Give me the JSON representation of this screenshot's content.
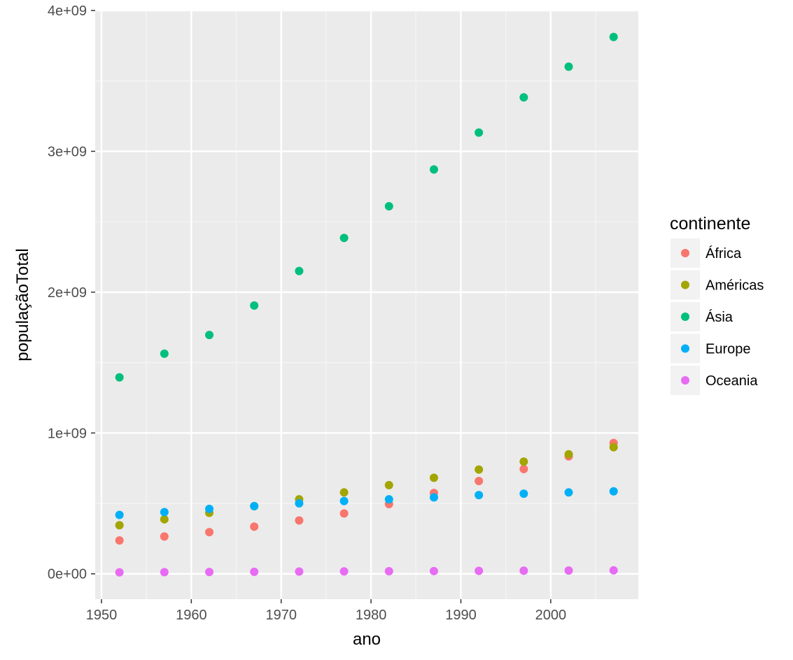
{
  "chart_data": {
    "type": "scatter",
    "xlabel": "ano",
    "ylabel": "populaçãoTotal",
    "xlim": [
      1949.3,
      2009.75
    ],
    "ylim": [
      -180000000,
      4000000000
    ],
    "x_ticks": [
      {
        "value": 1950,
        "label": "1950"
      },
      {
        "value": 1960,
        "label": "1960"
      },
      {
        "value": 1970,
        "label": "1970"
      },
      {
        "value": 1980,
        "label": "1980"
      },
      {
        "value": 1990,
        "label": "1990"
      },
      {
        "value": 2000,
        "label": "2000"
      }
    ],
    "y_ticks": [
      {
        "value": 0,
        "label": "0e+00"
      },
      {
        "value": 1000000000,
        "label": "1e+09"
      },
      {
        "value": 2000000000,
        "label": "2e+09"
      },
      {
        "value": 3000000000,
        "label": "3e+09"
      },
      {
        "value": 4000000000,
        "label": "4e+09"
      }
    ],
    "grid": true,
    "legend": {
      "title": "continente",
      "position": "right"
    },
    "x": [
      1952,
      1957,
      1962,
      1967,
      1972,
      1977,
      1982,
      1987,
      1992,
      1997,
      2002,
      2007
    ],
    "series": [
      {
        "name": "África",
        "color": "#F8766D",
        "values": [
          237000000,
          265000000,
          296000000,
          335000000,
          379000000,
          429000000,
          495000000,
          574000000,
          659000000,
          744000000,
          834000000,
          929000000
        ]
      },
      {
        "name": "Américas",
        "color": "#A3A500",
        "values": [
          345000000,
          387000000,
          433000000,
          480000000,
          529000000,
          578000000,
          630000000,
          682000000,
          740000000,
          797000000,
          849000000,
          899000000
        ]
      },
      {
        "name": "Ásia",
        "color": "#00BF7D",
        "values": [
          1395000000,
          1563000000,
          1696000000,
          1905000000,
          2150000000,
          2385000000,
          2610000000,
          2871000000,
          3133000000,
          3383000000,
          3601000000,
          3812000000
        ]
      },
      {
        "name": "Europe",
        "color": "#00B0F6",
        "values": [
          418000000,
          438000000,
          461000000,
          481000000,
          501000000,
          517000000,
          529000000,
          543000000,
          559000000,
          569000000,
          578000000,
          586000000
        ]
      },
      {
        "name": "Oceania",
        "color": "#E76BF3",
        "values": [
          10700000,
          11900000,
          13000000,
          14500000,
          16100000,
          17200000,
          18400000,
          19500000,
          20900000,
          22200000,
          23500000,
          24500000
        ]
      }
    ]
  }
}
